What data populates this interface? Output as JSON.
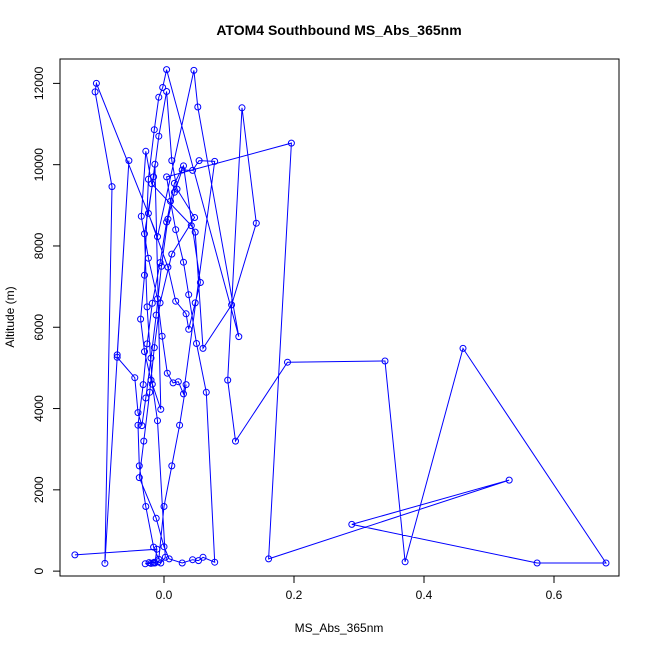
{
  "chart_data": {
    "type": "line",
    "title": "ATOM4 Southbound MS_Abs_365nm",
    "xlabel": "MS_Abs_365nm",
    "ylabel": "Altitude (m)",
    "xlim": [
      -0.16,
      0.7
    ],
    "ylim": [
      -120,
      12600
    ],
    "x_ticks": [
      0.0,
      0.2,
      0.4,
      0.6
    ],
    "x_tick_labels": [
      "0.0",
      "0.2",
      "0.4",
      "0.6"
    ],
    "y_ticks": [
      0,
      2000,
      4000,
      6000,
      8000,
      10000,
      12000
    ],
    "y_tick_labels": [
      "0",
      "2000",
      "4000",
      "6000",
      "8000",
      "10000",
      "12000"
    ],
    "grid": false,
    "marker": "open-circle",
    "color": "#0000ff",
    "series": [
      {
        "x": [
          -0.137,
          -0.011,
          -0.014,
          -0.015,
          -0.023,
          -0.029,
          -0.02,
          -0.017,
          -0.009,
          -0.005,
          0.002,
          -0.01,
          -0.018,
          -0.026,
          -0.03,
          -0.016,
          -0.008,
          0.004,
          0.012,
          0.02,
          0.047,
          0.012,
          -0.006,
          -0.015,
          -0.022,
          -0.031,
          -0.038,
          -0.012,
          0.0,
          0.008,
          0.028,
          0.044,
          0.053,
          0.06,
          0.078,
          0.065,
          0.05,
          0.038,
          0.03,
          0.018,
          0.01,
          0.004,
          0.196,
          0.161,
          0.531,
          0.289,
          0.574,
          0.68,
          0.46,
          0.371,
          0.34,
          0.19,
          0.11,
          0.098,
          0.12,
          0.142,
          0.104,
          0.06,
          0.048,
          0.042,
          -0.019,
          -0.028,
          -0.035,
          -0.024,
          -0.01,
          -0.003,
          0.005,
          0.014,
          0.022,
          0.03,
          0.078,
          0.054,
          0.044,
          0.028,
          0.016,
          0.006,
          -0.004,
          -0.012,
          -0.02,
          -0.028,
          -0.034,
          -0.04,
          -0.045,
          -0.072,
          -0.072,
          -0.054,
          -0.091,
          -0.08,
          -0.106,
          -0.104,
          -0.01,
          0.046,
          0.052,
          0.115,
          0.004,
          -0.002,
          -0.008,
          -0.015,
          -0.024,
          -0.03,
          -0.036,
          -0.03,
          -0.02,
          -0.005,
          -0.014,
          -0.024,
          0.006,
          0.018,
          0.034,
          0.038,
          0.048,
          0.056,
          0.03,
          0.016,
          0.004,
          -0.006,
          -0.018,
          -0.026,
          -0.032,
          -0.04,
          -0.038,
          -0.028,
          -0.016,
          -0.008,
          0.0,
          0.012,
          0.024,
          0.034
        ],
        "y": [
          400,
          540,
          200,
          220,
          210,
          180,
          190,
          200,
          230,
          200,
          340,
          3700,
          4600,
          6500,
          8300,
          9700,
          10700,
          11800,
          10100,
          9400,
          8700,
          7800,
          6600,
          5500,
          4400,
          3200,
          2300,
          1300,
          600,
          300,
          200,
          280,
          260,
          340,
          220,
          4400,
          5600,
          6800,
          7600,
          8400,
          9100,
          9700,
          10530,
          300,
          2240,
          1150,
          200,
          200,
          5480,
          230,
          5170,
          5140,
          3200,
          4700,
          11400,
          8560,
          6550,
          5480,
          8340,
          8500,
          9530,
          10330,
          8730,
          7700,
          6700,
          5780,
          4870,
          4630,
          4660,
          4360,
          10080,
          10100,
          9860,
          9870,
          9320,
          8660,
          7500,
          6300,
          5240,
          4260,
          3580,
          3900,
          4760,
          5260,
          5320,
          10100,
          190,
          9460,
          11790,
          12000,
          8230,
          12320,
          11420,
          5770,
          12340,
          11900,
          11660,
          10860,
          9640,
          7280,
          6200,
          5400,
          4700,
          3980,
          10010,
          8800,
          7480,
          6640,
          6330,
          5950,
          6600,
          7100,
          9970,
          9540,
          8590,
          7590,
          6590,
          5590,
          4590,
          3590,
          2590,
          1590,
          590,
          290,
          1590,
          2590,
          3590,
          4590
        ]
      }
    ]
  }
}
